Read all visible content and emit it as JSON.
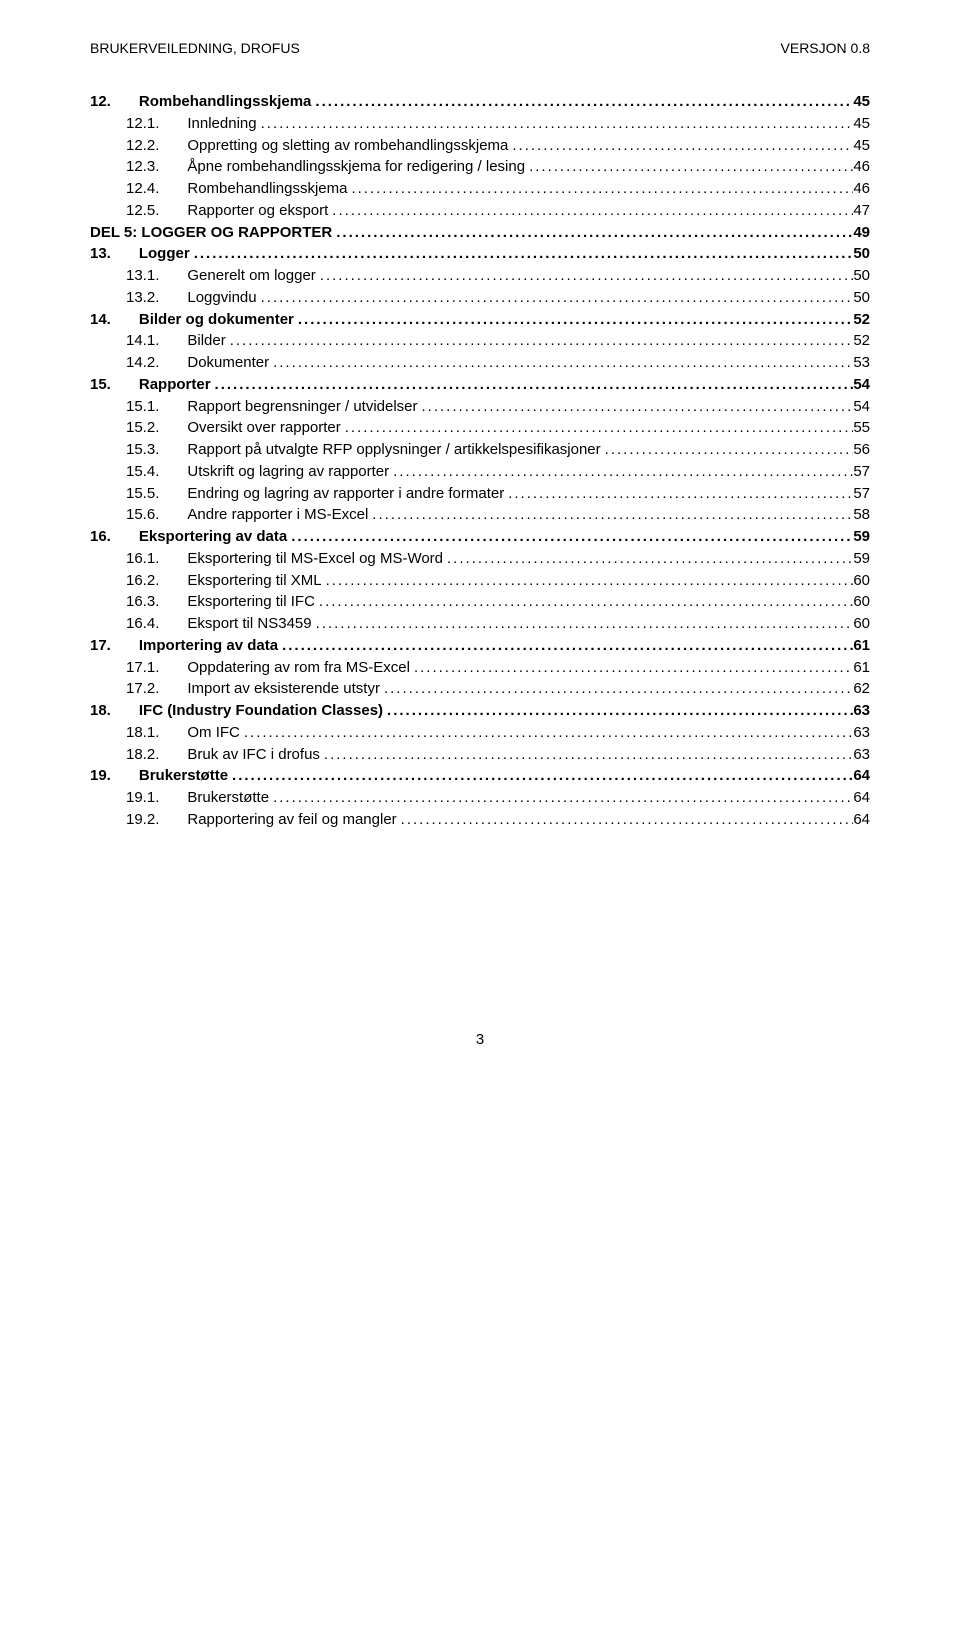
{
  "header": {
    "left": "BRUKERVEILEDNING, DROFUS",
    "right": "VERSJON 0.8"
  },
  "footer": {
    "page": "3"
  },
  "toc": [
    {
      "lvl": 0,
      "num": "12.",
      "label": "Rombehandlingsskjema",
      "page": "45"
    },
    {
      "lvl": 1,
      "num": "12.1.",
      "label": "Innledning",
      "page": "45"
    },
    {
      "lvl": 1,
      "num": "12.2.",
      "label": "Oppretting og sletting av rombehandlingsskjema",
      "page": "45"
    },
    {
      "lvl": 1,
      "num": "12.3.",
      "label": "Åpne rombehandlingsskjema for redigering / lesing",
      "page": "46"
    },
    {
      "lvl": 1,
      "num": "12.4.",
      "label": "Rombehandlingsskjema",
      "page": "46"
    },
    {
      "lvl": 1,
      "num": "12.5.",
      "label": "Rapporter og eksport",
      "page": "47"
    },
    {
      "lvl": "sect",
      "num": "",
      "label": "DEL 5: LOGGER OG RAPPORTER",
      "page": "49"
    },
    {
      "lvl": 0,
      "num": "13.",
      "label": "Logger",
      "page": "50"
    },
    {
      "lvl": 1,
      "num": "13.1.",
      "label": "Generelt om logger",
      "page": "50"
    },
    {
      "lvl": 1,
      "num": "13.2.",
      "label": "Loggvindu",
      "page": "50"
    },
    {
      "lvl": 0,
      "num": "14.",
      "label": "Bilder og dokumenter",
      "page": "52"
    },
    {
      "lvl": 1,
      "num": "14.1.",
      "label": "Bilder",
      "page": "52"
    },
    {
      "lvl": 1,
      "num": "14.2.",
      "label": "Dokumenter",
      "page": "53"
    },
    {
      "lvl": 0,
      "num": "15.",
      "label": "Rapporter",
      "page": "54"
    },
    {
      "lvl": 1,
      "num": "15.1.",
      "label": "Rapport begrensninger / utvidelser",
      "page": "54"
    },
    {
      "lvl": 1,
      "num": "15.2.",
      "label": "Oversikt over rapporter",
      "page": "55"
    },
    {
      "lvl": 1,
      "num": "15.3.",
      "label": "Rapport på utvalgte RFP opplysninger / artikkelspesifikasjoner",
      "page": "56"
    },
    {
      "lvl": 1,
      "num": "15.4.",
      "label": "Utskrift og lagring av rapporter",
      "page": "57"
    },
    {
      "lvl": 1,
      "num": "15.5.",
      "label": "Endring og lagring av rapporter i andre formater",
      "page": "57"
    },
    {
      "lvl": 1,
      "num": "15.6.",
      "label": "Andre rapporter i MS-Excel",
      "page": "58"
    },
    {
      "lvl": 0,
      "num": "16.",
      "label": "Eksportering av data",
      "page": "59"
    },
    {
      "lvl": 1,
      "num": "16.1.",
      "label": "Eksportering til MS-Excel og MS-Word",
      "page": "59"
    },
    {
      "lvl": 1,
      "num": "16.2.",
      "label": "Eksportering til XML",
      "page": "60"
    },
    {
      "lvl": 1,
      "num": "16.3.",
      "label": "Eksportering til IFC",
      "page": "60"
    },
    {
      "lvl": 1,
      "num": "16.4.",
      "label": "Eksport til NS3459",
      "page": "60"
    },
    {
      "lvl": 0,
      "num": "17.",
      "label": "Importering av data",
      "page": "61"
    },
    {
      "lvl": 1,
      "num": "17.1.",
      "label": "Oppdatering av rom fra MS-Excel",
      "page": "61"
    },
    {
      "lvl": 1,
      "num": "17.2.",
      "label": "Import av eksisterende utstyr",
      "page": "62"
    },
    {
      "lvl": 0,
      "num": "18.",
      "label": "IFC (Industry Foundation Classes)",
      "page": "63"
    },
    {
      "lvl": 1,
      "num": "18.1.",
      "label": "Om IFC",
      "page": "63"
    },
    {
      "lvl": 1,
      "num": "18.2.",
      "label": "Bruk av IFC i drofus",
      "page": "63"
    },
    {
      "lvl": 0,
      "num": "19.",
      "label": "Brukerstøtte",
      "page": "64"
    },
    {
      "lvl": 1,
      "num": "19.1.",
      "label": "Brukerstøtte",
      "page": "64"
    },
    {
      "lvl": 1,
      "num": "19.2.",
      "label": "Rapportering av feil og mangler",
      "page": "64"
    }
  ]
}
